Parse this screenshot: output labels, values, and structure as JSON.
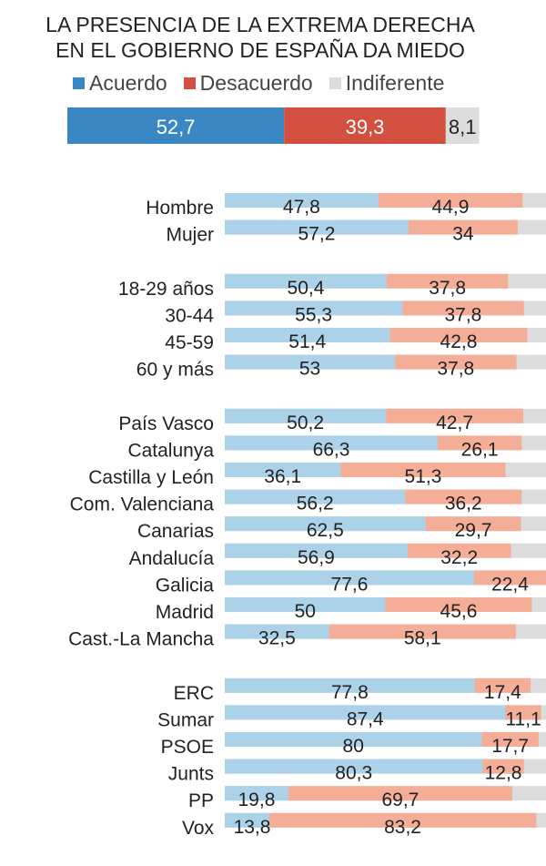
{
  "chart_data": {
    "type": "bar",
    "orientation": "horizontal-stacked",
    "title_lines": [
      "LA PRESENCIA DE LA EXTREMA DERECHA",
      "EN EL GOBIERNO DE ESPAÑA DA MIEDO"
    ],
    "legend": [
      {
        "name": "Acuerdo",
        "color": "#3b87c4"
      },
      {
        "name": "Desacuerdo",
        "color": "#d35040"
      },
      {
        "name": "Indiferente",
        "color": "#dcdcdc"
      }
    ],
    "total": {
      "acuerdo": 52.7,
      "desacuerdo": 39.3,
      "indiferente": 8.1
    },
    "row_colors": {
      "acuerdo": "#acd2ea",
      "desacuerdo": "#f4ae97",
      "indiferente": "#dcdcdc"
    },
    "groups": [
      {
        "rows": [
          {
            "label": "Hombre",
            "acuerdo": 47.8,
            "desacuerdo": 44.9
          },
          {
            "label": "Mujer",
            "acuerdo": 57.2,
            "desacuerdo": 34
          }
        ]
      },
      {
        "rows": [
          {
            "label": "18-29 años",
            "acuerdo": 50.4,
            "desacuerdo": 37.8
          },
          {
            "label": "30-44",
            "acuerdo": 55.3,
            "desacuerdo": 37.8
          },
          {
            "label": "45-59",
            "acuerdo": 51.4,
            "desacuerdo": 42.8
          },
          {
            "label": "60 y más",
            "acuerdo": 53,
            "desacuerdo": 37.8
          }
        ]
      },
      {
        "rows": [
          {
            "label": "País Vasco",
            "acuerdo": 50.2,
            "desacuerdo": 42.7
          },
          {
            "label": "Catalunya",
            "acuerdo": 66.3,
            "desacuerdo": 26.1
          },
          {
            "label": "Castilla y León",
            "acuerdo": 36.1,
            "desacuerdo": 51.3
          },
          {
            "label": "Com. Valenciana",
            "acuerdo": 56.2,
            "desacuerdo": 36.2
          },
          {
            "label": "Canarias",
            "acuerdo": 62.5,
            "desacuerdo": 29.7
          },
          {
            "label": "Andalucía",
            "acuerdo": 56.9,
            "desacuerdo": 32.2
          },
          {
            "label": "Galicia",
            "acuerdo": 77.6,
            "desacuerdo": 22.4
          },
          {
            "label": "Madrid",
            "acuerdo": 50,
            "desacuerdo": 45.6
          },
          {
            "label": "Cast.-La Mancha",
            "acuerdo": 32.5,
            "desacuerdo": 58.1
          }
        ]
      },
      {
        "rows": [
          {
            "label": "ERC",
            "acuerdo": 77.8,
            "desacuerdo": 17.4
          },
          {
            "label": "Sumar",
            "acuerdo": 87.4,
            "desacuerdo": 11.1
          },
          {
            "label": "PSOE",
            "acuerdo": 80,
            "desacuerdo": 17.7
          },
          {
            "label": "Junts",
            "acuerdo": 80.3,
            "desacuerdo": 12.8
          },
          {
            "label": "PP",
            "acuerdo": 19.8,
            "desacuerdo": 69.7
          },
          {
            "label": "Vox",
            "acuerdo": 13.8,
            "desacuerdo": 83.2
          }
        ]
      }
    ],
    "xlim": [
      0,
      100
    ]
  }
}
